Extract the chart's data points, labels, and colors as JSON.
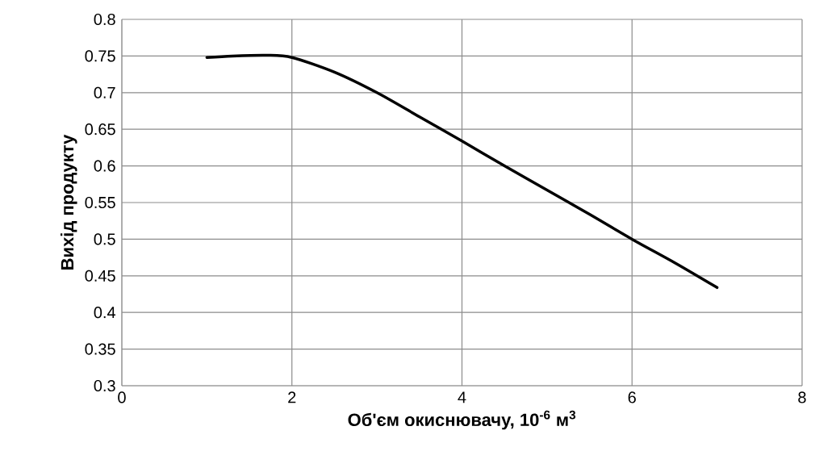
{
  "chart_data": {
    "type": "line",
    "xlabel": "Об'єм окиснювачу, 10$^{-6}$ м$^{3}$",
    "ylabel": "Вихід продукту",
    "x": [
      1,
      1.3,
      1.7,
      2,
      2.5,
      3,
      3.5,
      4,
      4.5,
      5,
      5.5,
      6,
      6.5,
      7
    ],
    "series": [
      {
        "color": "#000000",
        "values": [
          0.748,
          0.75,
          0.751,
          0.748,
          0.728,
          0.7,
          0.667,
          0.634,
          0.6,
          0.567,
          0.534,
          0.5,
          0.468,
          0.434
        ]
      }
    ],
    "xlim": [
      0,
      8
    ],
    "xticks": [
      0,
      2,
      4,
      6,
      8
    ],
    "ylim": [
      0.3,
      0.8
    ],
    "yticks": [
      0.3,
      0.35,
      0.4,
      0.45,
      0.5,
      0.55,
      0.6,
      0.65,
      0.7,
      0.75,
      0.8
    ],
    "grid": true,
    "marker": "none",
    "line_style": "solid"
  }
}
